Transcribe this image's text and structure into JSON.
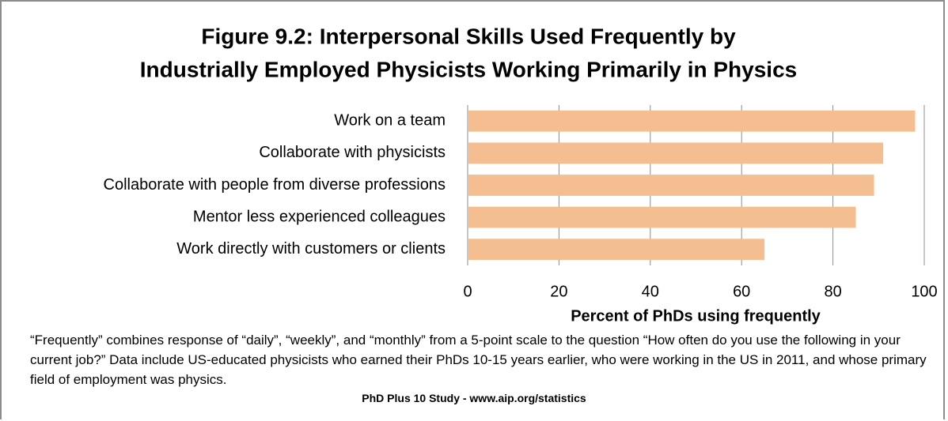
{
  "chart_data": {
    "type": "barh",
    "title": [
      "Figure 9.2: Interpersonal Skills Used Frequently by",
      "Industrially Employed Physicists Working Primarily in Physics"
    ],
    "categories": [
      "Work on a team",
      "Collaborate with physicists",
      "Collaborate with people from diverse professions",
      "Mentor less experienced colleagues",
      "Work directly with customers or clients"
    ],
    "values": [
      98,
      91,
      89,
      85,
      65
    ],
    "color": "#f5be91",
    "xlim": [
      0,
      100
    ],
    "xticks": [
      0,
      20,
      40,
      60,
      80,
      100
    ],
    "grid": true,
    "xlabel": "Percent of PhDs using frequently",
    "note": "“Frequently” combines response of “daily”, “weekly”, and “monthly” from a 5-point scale to the question “How often do you use the following in your current job?”  Data include US-educated physicists  who earned their PhDs 10-15 years earlier, who were working in the US in 2011, and whose primary field of employment was physics.",
    "source": "PhD Plus 10 Study - www.aip.org/statistics"
  }
}
